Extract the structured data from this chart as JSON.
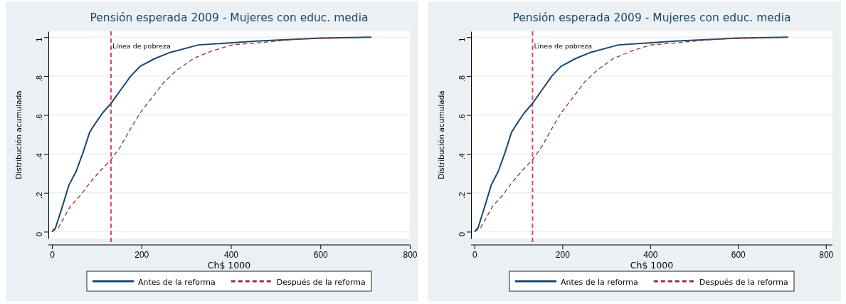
{
  "chart_data": [
    {
      "type": "line",
      "title": "Pensión esperada 2009 - Mujeres con educ. media",
      "xlabel": "Ch$ 1000",
      "ylabel": "Distribución acumulada",
      "xlim": [
        -8,
        800
      ],
      "xticks": [
        0,
        200,
        400,
        600,
        800
      ],
      "ylim": [
        -0.035,
        1.03
      ],
      "yticks": [
        {
          "value": 0,
          "label": "0"
        },
        {
          "value": 0.2,
          "label": ".2"
        },
        {
          "value": 0.4,
          "label": ".4"
        },
        {
          "value": 0.6,
          "label": ".6"
        },
        {
          "value": 0.8,
          "label": ".8"
        },
        {
          "value": 1,
          "label": "1"
        }
      ],
      "grid": "y",
      "legend": "bottom",
      "series": [
        {
          "name": "Antes de la reforma",
          "color": "#1a476f",
          "line_style": "solid",
          "x": [
            0,
            8,
            22,
            38,
            54,
            70,
            84,
            95,
            113,
            132,
            154,
            176,
            197,
            230,
            262,
            327,
            392,
            456,
            600,
            714
          ],
          "values": [
            0,
            0.02,
            0.12,
            0.24,
            0.31,
            0.41,
            0.51,
            0.55,
            0.61,
            0.66,
            0.73,
            0.8,
            0.85,
            0.89,
            0.92,
            0.96,
            0.97,
            0.98,
            0.995,
            1
          ]
        },
        {
          "name": "Después de la reforma",
          "color": "#90353b",
          "line_style": "dashed",
          "x": [
            0,
            14,
            41,
            65,
            84,
            111,
            132,
            154,
            176,
            197,
            224,
            251,
            279,
            316,
            359,
            402,
            456,
            550,
            714
          ],
          "values": [
            0,
            0.02,
            0.13,
            0.19,
            0.25,
            0.32,
            0.37,
            0.44,
            0.53,
            0.61,
            0.69,
            0.77,
            0.83,
            0.89,
            0.93,
            0.96,
            0.97,
            0.99,
            1
          ]
        }
      ],
      "ref_lines": [
        {
          "axis": "x",
          "value": 132,
          "label": "Línea de pobreza",
          "color": "#d9476a",
          "line_style": "dashed"
        }
      ]
    },
    {
      "type": "line",
      "title": "Pensión esperada 2009 - Mujeres con educ. media",
      "xlabel": "Ch$ 1000",
      "ylabel": "Distribución acumulada",
      "xlim": [
        -8,
        815
      ],
      "xticks": [
        0,
        200,
        400,
        600,
        800
      ],
      "ylim": [
        -0.035,
        1.03
      ],
      "yticks": [
        {
          "value": 0,
          "label": "0"
        },
        {
          "value": 0.2,
          "label": ".2"
        },
        {
          "value": 0.4,
          "label": ".4"
        },
        {
          "value": 0.6,
          "label": ".6"
        },
        {
          "value": 0.8,
          "label": ".8"
        },
        {
          "value": 1,
          "label": "1"
        }
      ],
      "grid": "y",
      "legend": "bottom",
      "series": [
        {
          "name": "Antes de la reforma",
          "color": "#1a476f",
          "line_style": "solid",
          "x": [
            0,
            8,
            22,
            38,
            54,
            70,
            84,
            95,
            113,
            132,
            154,
            176,
            197,
            230,
            262,
            327,
            392,
            456,
            600,
            714
          ],
          "values": [
            0,
            0.02,
            0.12,
            0.24,
            0.31,
            0.41,
            0.51,
            0.55,
            0.61,
            0.66,
            0.73,
            0.8,
            0.85,
            0.89,
            0.92,
            0.96,
            0.97,
            0.98,
            0.995,
            1
          ]
        },
        {
          "name": "Después de la reforma",
          "color": "#90353b",
          "line_style": "dashed",
          "x": [
            0,
            14,
            41,
            65,
            84,
            111,
            132,
            154,
            176,
            197,
            224,
            251,
            279,
            316,
            359,
            402,
            456,
            550,
            714
          ],
          "values": [
            0,
            0.02,
            0.13,
            0.19,
            0.25,
            0.32,
            0.37,
            0.44,
            0.53,
            0.61,
            0.69,
            0.77,
            0.83,
            0.89,
            0.93,
            0.96,
            0.97,
            0.99,
            1
          ]
        }
      ],
      "ref_lines": [
        {
          "axis": "x",
          "value": 132,
          "label": "Línea de pobreza",
          "color": "#d9476a",
          "line_style": "dashed"
        }
      ]
    }
  ]
}
